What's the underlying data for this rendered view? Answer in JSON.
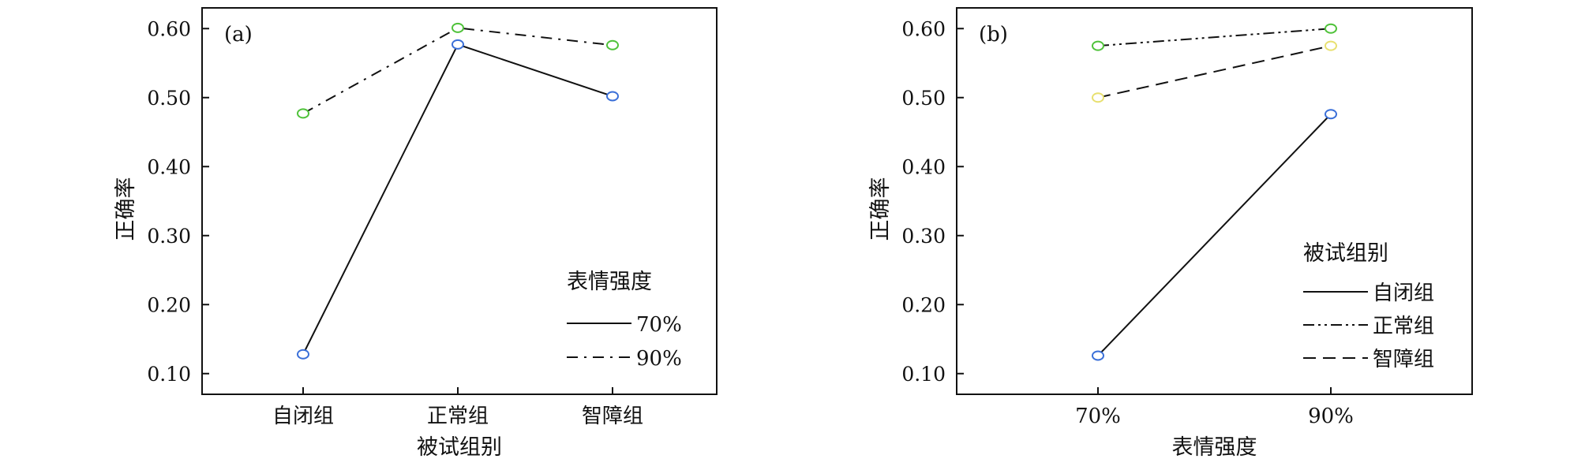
{
  "chart_data": [
    {
      "type": "line",
      "panel_label": "(a)",
      "xlabel": "被试组别",
      "ylabel": "正确率",
      "categories": [
        "自闭组",
        "正常组",
        "智障组"
      ],
      "ylim": [
        0.07,
        0.63
      ],
      "yticks": [
        "0.10",
        "0.20",
        "0.30",
        "0.40",
        "0.50",
        "0.60"
      ],
      "yticks_values": [
        0.1,
        0.2,
        0.3,
        0.4,
        0.5,
        0.6
      ],
      "grid": false,
      "legend": {
        "title": "表情强度",
        "placement": "bottom-right"
      },
      "series": [
        {
          "name": "70%",
          "style": "solid",
          "marker_color": "#3a6fd8",
          "values": [
            0.128,
            0.577,
            0.502
          ]
        },
        {
          "name": "90%",
          "style": "dash-dot",
          "marker_color": "#4fc23a",
          "values": [
            0.477,
            0.601,
            0.576
          ]
        }
      ]
    },
    {
      "type": "line",
      "panel_label": "(b)",
      "xlabel": "表情强度",
      "ylabel": "正确率",
      "categories": [
        "70%",
        "90%"
      ],
      "ylim": [
        0.07,
        0.63
      ],
      "yticks": [
        "0.10",
        "0.20",
        "0.30",
        "0.40",
        "0.50",
        "0.60"
      ],
      "yticks_values": [
        0.1,
        0.2,
        0.3,
        0.4,
        0.5,
        0.6
      ],
      "grid": false,
      "legend": {
        "title": "被试组别",
        "placement": "bottom-right"
      },
      "series": [
        {
          "name": "自闭组",
          "style": "solid",
          "marker_color": "#3a6fd8",
          "values": [
            0.126,
            0.476
          ]
        },
        {
          "name": "正常组",
          "style": "dash-dot-dot",
          "marker_color": "#4fc23a",
          "values": [
            0.575,
            0.6
          ]
        },
        {
          "name": "智障组",
          "style": "dashed",
          "marker_color": "#e8e070",
          "values": [
            0.5,
            0.575
          ]
        }
      ]
    }
  ]
}
